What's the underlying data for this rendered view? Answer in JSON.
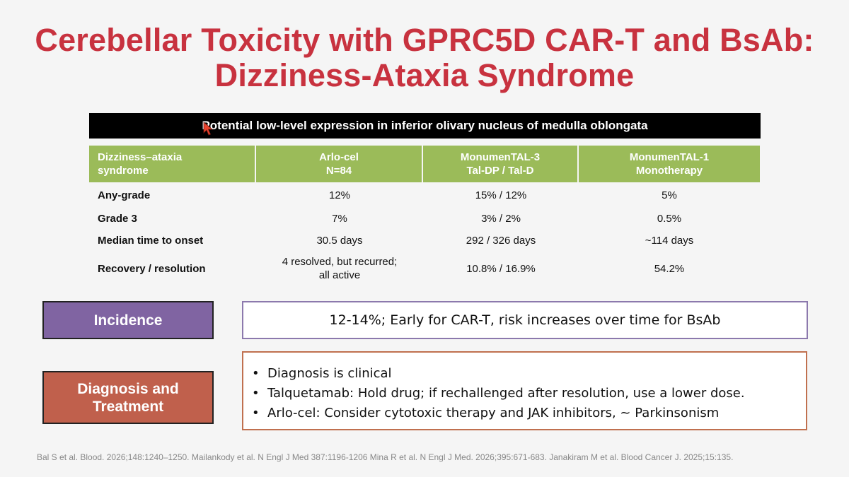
{
  "title": {
    "line1": "Cerebellar Toxicity with GPRC5D CAR-T and BsAb:",
    "line2": "Dizziness-Ataxia Syndrome"
  },
  "banner": "Potential low-level expression in inferior olivary nucleus of medulla oblongata",
  "table": {
    "headers": [
      "Dizziness–ataxia syndrome",
      "Arlo-cel N=84",
      "MonumenTAL-3 Tal-DP / Tal-D",
      "MonumenTAL-1 Monotherapy"
    ],
    "header_lines": [
      [
        "Dizziness–ataxia",
        "syndrome"
      ],
      [
        "Arlo-cel",
        "N=84"
      ],
      [
        "MonumenTAL-3",
        "Tal-DP / Tal-D"
      ],
      [
        "MonumenTAL-1",
        "Monotherapy"
      ]
    ],
    "rows": [
      {
        "label": "Any-grade",
        "values": [
          "12%",
          "15% / 12%",
          "5%"
        ]
      },
      {
        "label": "Grade 3",
        "values": [
          "7%",
          "3% / 2%",
          "0.5%"
        ]
      },
      {
        "label": "Median time to onset",
        "values": [
          "30.5 days",
          "292  / 326 days",
          "~114 days"
        ]
      },
      {
        "label": "Recovery / resolution",
        "values": [
          "4 resolved, but recurred; all active",
          "10.8% / 16.9%",
          "54.2%"
        ]
      }
    ],
    "recovery_arlo_lines": [
      "4 resolved, but recurred;",
      "all active"
    ]
  },
  "incidence": {
    "label": "Incidence",
    "text": "12-14%; Early for CAR-T, risk increases over time for BsAb"
  },
  "diagnosis": {
    "label": "Diagnosis and Treatment",
    "label_lines": [
      "Diagnosis and",
      "Treatment"
    ],
    "bullet": "•",
    "items": [
      "Diagnosis is clinical",
      "Talquetamab: Hold drug; if rechallenged after resolution, use a lower dose.",
      "Arlo-cel: Consider cytotoxic therapy and JAK inhibitors, ~ Parkinsonism"
    ]
  },
  "references": "Bal S et al. Blood. 2026;148:1240–1250. Mailankody et al. N Engl J Med 387:1196-1206 Mina R et al. N Engl J Med. 2026;395:671-683. Janakiram M et al. Blood Cancer J. 2025;15:135.",
  "colors": {
    "title": "#c8323f",
    "table_header": "#9bbb59",
    "incidence": "#8064a2",
    "diagnosis": "#c0604c",
    "cursor": "#e8432e"
  },
  "icons": {
    "cursor": "mouse-pointer-icon"
  }
}
